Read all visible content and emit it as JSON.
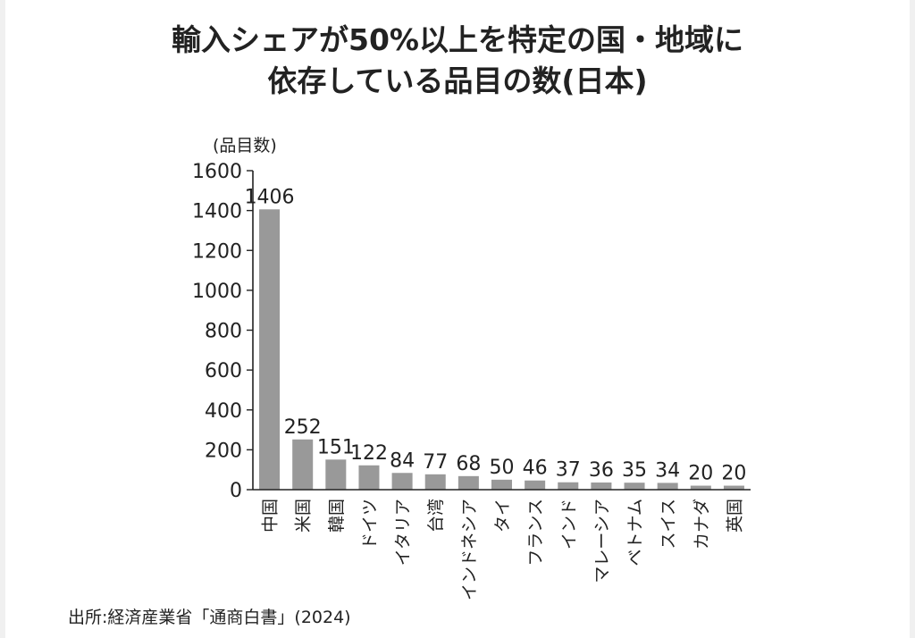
{
  "title_line1": "輸入シェアが50%以上を特定の国・地域に",
  "title_line2": "依存している品目の数(日本)",
  "source": "出所:経済産業省「通商白書」(2024)",
  "chart_data": {
    "type": "bar",
    "title": "輸入シェアが50%以上を特定の国・地域に 依存している品目の数(日本)",
    "ylabel": "(品目数)",
    "xlabel": "",
    "ylim": [
      0,
      1600
    ],
    "yticks": [
      0,
      200,
      400,
      600,
      800,
      1000,
      1200,
      1400,
      1600
    ],
    "categories": [
      "中国",
      "米国",
      "韓国",
      "ドイツ",
      "イタリア",
      "台湾",
      "インドネシア",
      "タイ",
      "フランス",
      "インド",
      "マレーシア",
      "ベトナム",
      "スイス",
      "カナダ",
      "英国"
    ],
    "values": [
      1406,
      252,
      151,
      122,
      84,
      77,
      68,
      50,
      46,
      37,
      36,
      35,
      34,
      20,
      20
    ],
    "bar_color": "#999999",
    "grid": false,
    "legend": "none"
  }
}
